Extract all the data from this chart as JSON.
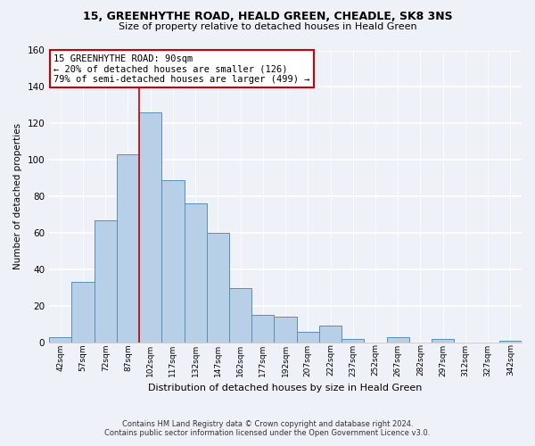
{
  "title": "15, GREENHYTHE ROAD, HEALD GREEN, CHEADLE, SK8 3NS",
  "subtitle": "Size of property relative to detached houses in Heald Green",
  "xlabel": "Distribution of detached houses by size in Heald Green",
  "ylabel": "Number of detached properties",
  "footnote1": "Contains HM Land Registry data © Crown copyright and database right 2024.",
  "footnote2": "Contains public sector information licensed under the Open Government Licence v3.0.",
  "bar_labels": [
    "42sqm",
    "57sqm",
    "72sqm",
    "87sqm",
    "102sqm",
    "117sqm",
    "132sqm",
    "147sqm",
    "162sqm",
    "177sqm",
    "192sqm",
    "207sqm",
    "222sqm",
    "237sqm",
    "252sqm",
    "267sqm",
    "282sqm",
    "297sqm",
    "312sqm",
    "327sqm",
    "342sqm"
  ],
  "bar_values": [
    3,
    33,
    67,
    103,
    126,
    89,
    76,
    60,
    30,
    15,
    14,
    6,
    9,
    2,
    0,
    3,
    0,
    2,
    0,
    0,
    1
  ],
  "bar_color": "#b8cfe8",
  "bar_edge_color": "#5b8db8",
  "ylim": [
    0,
    160
  ],
  "yticks": [
    0,
    20,
    40,
    60,
    80,
    100,
    120,
    140,
    160
  ],
  "annotation_box_text": "15 GREENHYTHE ROAD: 90sqm\n← 20% of detached houses are smaller (126)\n79% of semi-detached houses are larger (499) →",
  "vline_x_index": 3.5,
  "annotation_box_color": "#ffffff",
  "annotation_box_edge_color": "#cc0000",
  "background_color": "#eef2f8"
}
